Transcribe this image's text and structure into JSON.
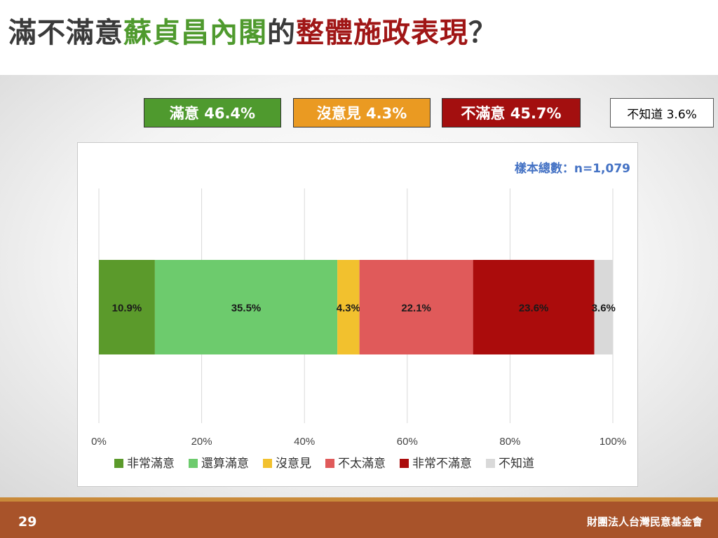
{
  "title": {
    "part1": "滿不滿意",
    "part2": "蘇貞昌內閣",
    "part3": "的",
    "part4": "整體施政表現",
    "part5": "？"
  },
  "summary": [
    {
      "label": "滿意 46.4%",
      "bg": "#4f9a2e",
      "fg": "#ffffff"
    },
    {
      "label": "沒意見 4.3%",
      "bg": "#ea9a22",
      "fg": "#ffffff"
    },
    {
      "label": "不滿意 45.7%",
      "bg": "#a30f0f",
      "fg": "#ffffff"
    },
    {
      "label": "不知道 3.6%",
      "bg": "#ffffff",
      "fg": "#000000"
    }
  ],
  "sample_note": "樣本總數：n=1,079",
  "chart_data": {
    "type": "bar",
    "orientation": "horizontal-stacked-100",
    "xlim": [
      0,
      100
    ],
    "x_ticks": [
      "0%",
      "20%",
      "40%",
      "60%",
      "80%",
      "100%"
    ],
    "grid": true,
    "legend_position": "bottom",
    "series": [
      {
        "name": "非常滿意",
        "value": 10.9,
        "label": "10.9%",
        "color": "#5b9a2b"
      },
      {
        "name": "還算滿意",
        "value": 35.5,
        "label": "35.5%",
        "color": "#6dcb6d"
      },
      {
        "name": "沒意見",
        "value": 4.3,
        "label": "4.3%",
        "color": "#f2c12e"
      },
      {
        "name": "不太滿意",
        "value": 22.1,
        "label": "22.1%",
        "color": "#e05a5a"
      },
      {
        "name": "非常不滿意",
        "value": 23.6,
        "label": "23.6%",
        "color": "#ab0c0c"
      },
      {
        "name": "不知道",
        "value": 3.6,
        "label": "3.6%",
        "color": "#d9d9d9"
      }
    ]
  },
  "footer": {
    "page": "29",
    "org": "財團法人台灣民意基金會"
  }
}
